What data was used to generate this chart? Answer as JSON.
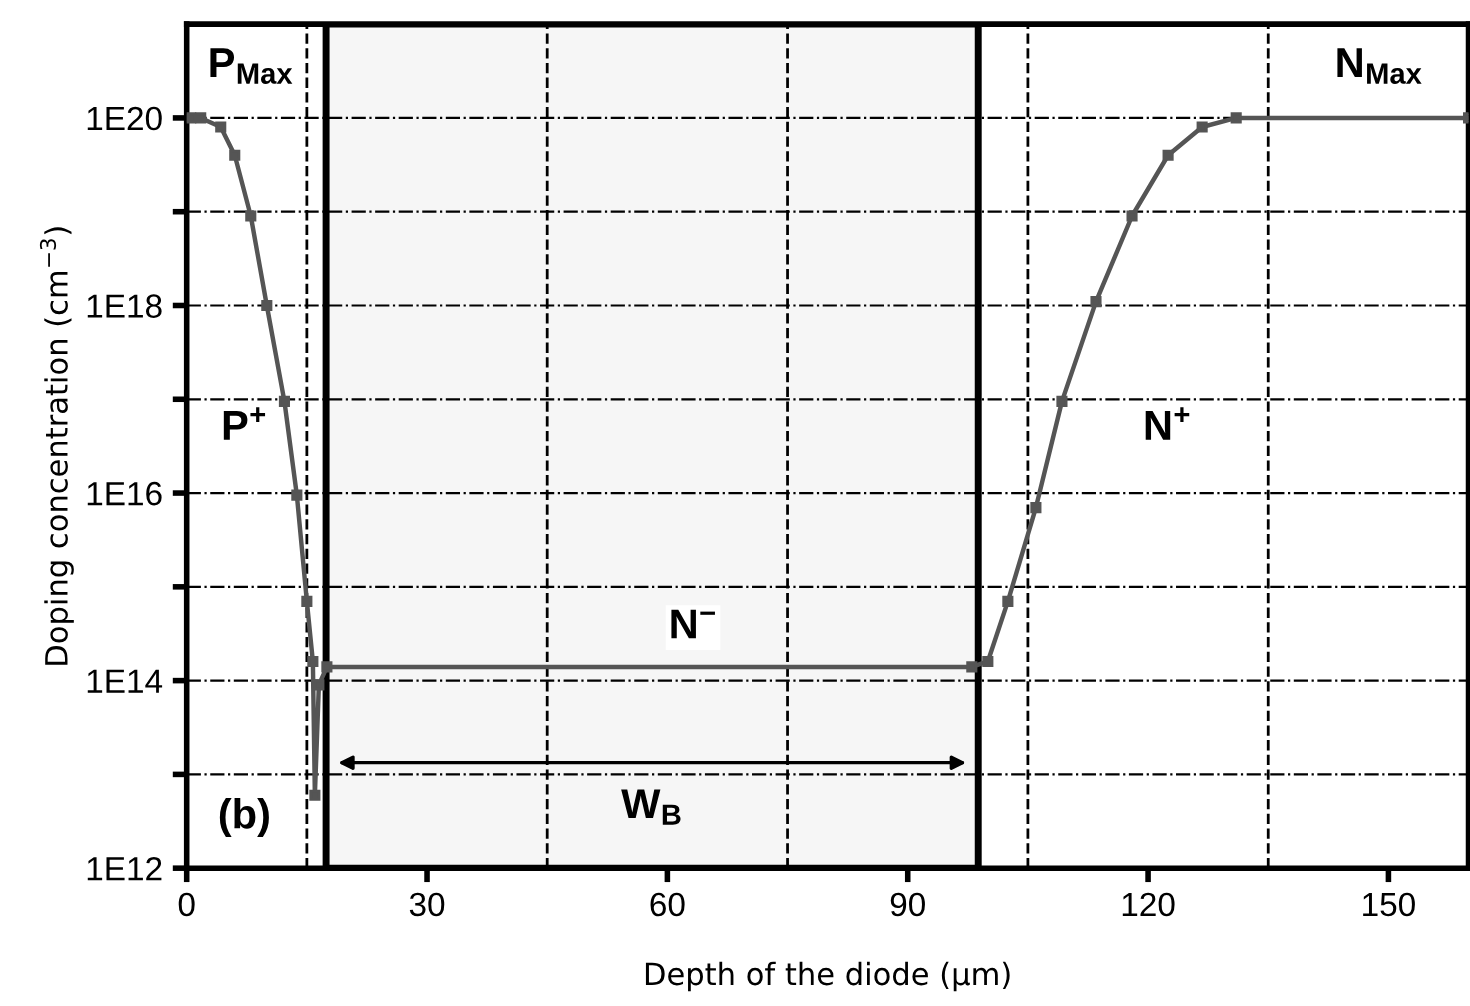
{
  "chart_data": {
    "type": "line",
    "xlabel": "Depth of the diode (µm)",
    "ylabel": "Doping concentration (cm$^{−3}$)",
    "log": "y",
    "xlim": [
      0,
      160
    ],
    "ylim": [
      1000000000000.0,
      1e+21
    ],
    "xticks": [
      0,
      30,
      60,
      90,
      120,
      150
    ],
    "yticks": [
      {
        "value": 1000000000000.0,
        "label": "1E12"
      },
      {
        "value": 10000000000000.0,
        "label": null
      },
      {
        "value": 100000000000000.0,
        "label": "1E14"
      },
      {
        "value": 1000000000000000.0,
        "label": null
      },
      {
        "value": 1e+16,
        "label": "1E16"
      },
      {
        "value": 1e+17,
        "label": null
      },
      {
        "value": 1e+18,
        "label": "1E18"
      },
      {
        "value": 1e+19,
        "label": null
      },
      {
        "value": 1e+20,
        "label": "1E20"
      }
    ],
    "grid": "y",
    "marker": "square",
    "line_style": "solid",
    "series": [
      {
        "color": "#555555",
        "x": [
          0.5,
          1.75,
          4.25,
          6,
          8,
          10,
          12.2,
          13.75,
          15,
          15.75,
          16,
          16.5,
          17.5,
          98,
          100,
          102.5,
          106,
          109.25,
          113.5,
          118,
          122.5,
          126.75,
          131,
          160
        ],
        "values": [
          1e+20,
          1e+20,
          8e+19,
          4e+19,
          9e+18,
          1e+18,
          9.5e+16,
          9500000000000000.0,
          700000000000000.0,
          160000000000000.0,
          6000000000000.0,
          90000000000000.0,
          140000000000000.0,
          140000000000000.0,
          160000000000000.0,
          700000000000000.0,
          7000000000000000.0,
          9.5e+16,
          1.1e+18,
          9e+18,
          4e+19,
          8e+19,
          1e+20,
          1e+20
        ]
      }
    ],
    "ref_lines": [
      {
        "axis": "x",
        "value": 15,
        "line_style": "dashed",
        "color": "#000000"
      },
      {
        "axis": "x",
        "value": 45,
        "line_style": "dashed",
        "color": "#000000"
      },
      {
        "axis": "x",
        "value": 75,
        "line_style": "dashed",
        "color": "#000000"
      },
      {
        "axis": "x",
        "value": 105,
        "line_style": "dashed",
        "color": "#000000"
      },
      {
        "axis": "x",
        "value": 135,
        "line_style": "dashed",
        "color": "#000000"
      }
    ],
    "bands": [
      {
        "axis": "x",
        "from": 17.4,
        "to": 98.8,
        "label": "W$_{B}$",
        "color": "#f6f6f6"
      }
    ],
    "annotations": [
      "P$_{Max}$",
      "N$_{Max}$",
      "P$^{+}$",
      "N$^{+}$",
      "N$^{−}$",
      "(b)"
    ]
  }
}
